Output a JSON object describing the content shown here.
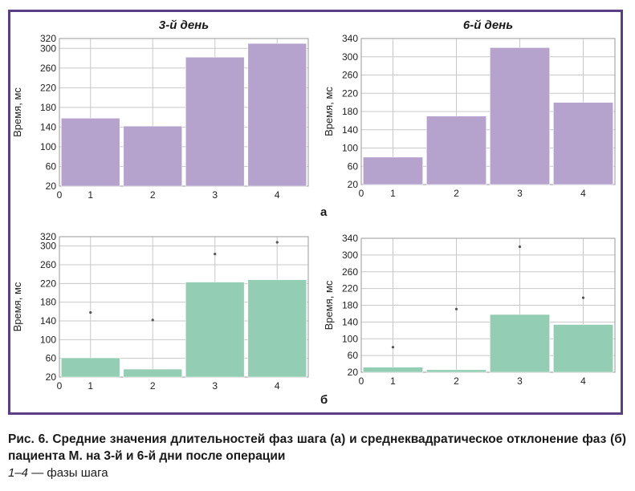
{
  "panel_letters": {
    "a": "а",
    "b": "б"
  },
  "caption": {
    "main": "Рис. 6. Средние значения длительностей фаз шага (а) и среднеквадратическое отклонение фаз (б) пациента М. на 3-й и 6-й дни после операции",
    "legend_range": "1–4",
    "legend_text": " — фазы шага"
  },
  "colors": {
    "frame": "#5b3f86",
    "purple": "#b5a3cd",
    "green": "#93cdb4",
    "grid": "#c8c8c8"
  },
  "chart_data": [
    {
      "id": "a-day3",
      "type": "bar",
      "title": "3-й день",
      "ylabel": "Время, мс",
      "categories": [
        "1",
        "2",
        "3",
        "4"
      ],
      "values": [
        158,
        142,
        282,
        310
      ],
      "ylim": [
        20,
        320
      ],
      "yticks": [
        20,
        60,
        100,
        140,
        180,
        220,
        260,
        300,
        320
      ],
      "x_origin_label": "0",
      "color": "#b5a3cd",
      "error_tops": [],
      "grid": true
    },
    {
      "id": "a-day6",
      "type": "bar",
      "title": "6-й день",
      "ylabel": "Время, мс",
      "categories": [
        "1",
        "2",
        "3",
        "4"
      ],
      "values": [
        80,
        170,
        320,
        200
      ],
      "ylim": [
        20,
        340
      ],
      "yticks": [
        20,
        60,
        100,
        140,
        180,
        220,
        260,
        300,
        340
      ],
      "x_origin_label": "0",
      "color": "#b5a3cd",
      "error_tops": [],
      "grid": true
    },
    {
      "id": "b-day3",
      "type": "bar",
      "title": "",
      "ylabel": "Время, мс",
      "categories": [
        "1",
        "2",
        "3",
        "4"
      ],
      "values": [
        61,
        37,
        223,
        228
      ],
      "ylim": [
        20,
        320
      ],
      "yticks": [
        20,
        60,
        100,
        140,
        180,
        220,
        260,
        300,
        320
      ],
      "x_origin_label": "0",
      "color": "#93cdb4",
      "error_tops": [
        158,
        142,
        283,
        308
      ],
      "grid": true
    },
    {
      "id": "b-day6",
      "type": "bar",
      "title": "",
      "ylabel": "Время, мс",
      "categories": [
        "1",
        "2",
        "3",
        "4"
      ],
      "values": [
        32,
        26,
        158,
        134
      ],
      "ylim": [
        20,
        340
      ],
      "yticks": [
        20,
        60,
        100,
        140,
        180,
        220,
        260,
        300,
        340
      ],
      "x_origin_label": "0",
      "color": "#93cdb4",
      "error_tops": [
        80,
        171,
        320,
        198
      ],
      "grid": true
    }
  ]
}
